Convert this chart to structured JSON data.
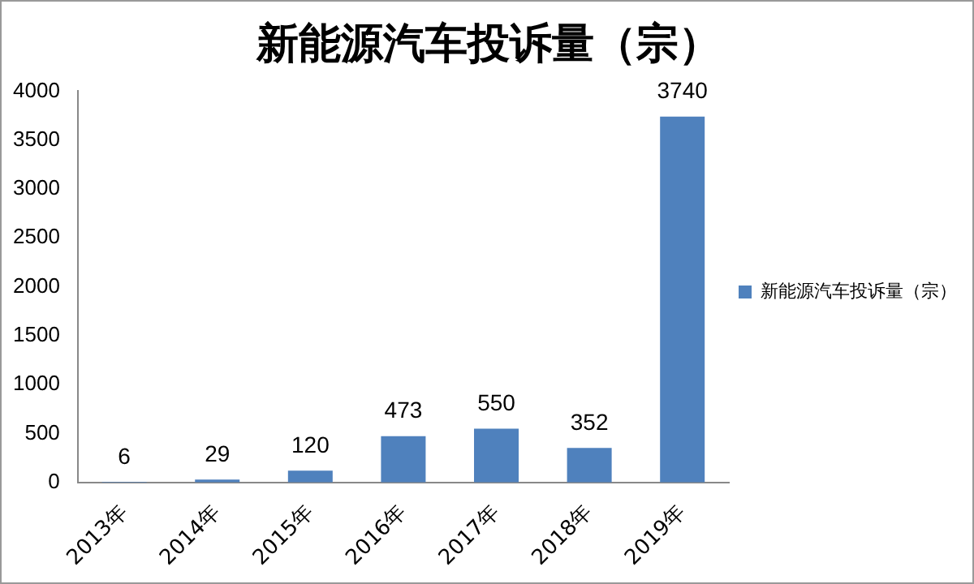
{
  "chart_data": {
    "type": "bar",
    "title": "新能源汽车投诉量（宗）",
    "categories": [
      "2013年",
      "2014年",
      "2015年",
      "2016年",
      "2017年",
      "2018年",
      "2019年"
    ],
    "series": [
      {
        "name": "新能源汽车投诉量（宗）",
        "color": "#4f81bd",
        "values": [
          6,
          29,
          120,
          473,
          550,
          352,
          3740
        ]
      }
    ],
    "ylim": [
      0,
      4000
    ],
    "yticks": [
      0,
      500,
      1000,
      1500,
      2000,
      2500,
      3000,
      3500,
      4000
    ],
    "grid": false,
    "legend": "right",
    "data_labels": true
  }
}
